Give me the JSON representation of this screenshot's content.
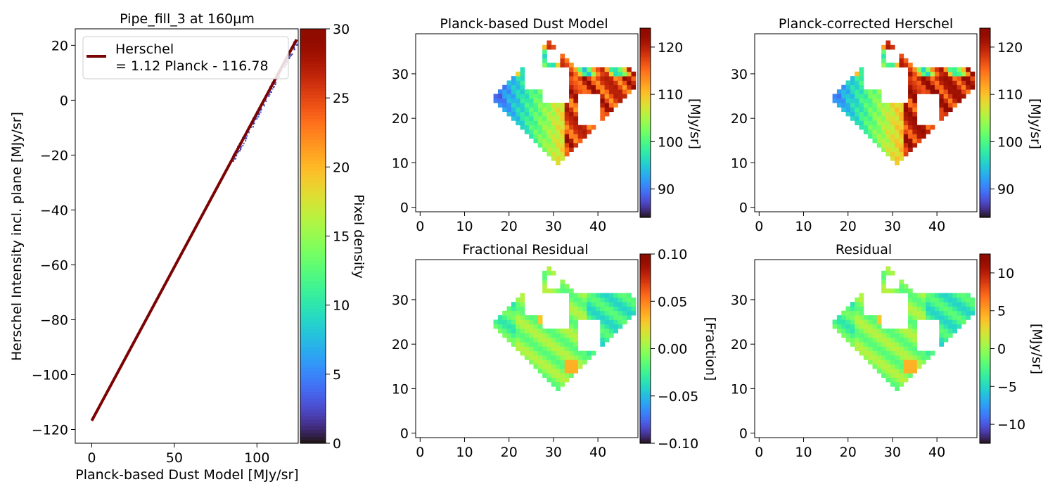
{
  "chart_data": [
    {
      "type": "scatter",
      "title": "Pipe_fill_3 at 160µm",
      "xlabel": "Planck-based Dust Model [MJy/sr]",
      "ylabel": "Herschel Intensity incl. plane [MJy/sr]",
      "xlim": [
        -10,
        125
      ],
      "ylim": [
        -125,
        26
      ],
      "xticks": [
        0,
        50,
        100
      ],
      "yticks": [
        -120,
        -100,
        -80,
        -60,
        -40,
        -20,
        0,
        20
      ],
      "legend": {
        "location": "top-left",
        "entries": [
          "Herschel\n= 1.12 Planck - 116.78"
        ]
      },
      "fit_line": {
        "slope": 1.12,
        "intercept": -116.78,
        "x_range": [
          0,
          124
        ],
        "color": "#7a0403"
      },
      "colorbar": {
        "label": "Pixel density",
        "range": [
          0,
          30
        ],
        "ticks": [
          0,
          5,
          10,
          15,
          20,
          25,
          30
        ],
        "colormap": "turbo"
      },
      "x_range_of_points": [
        85,
        124
      ]
    },
    {
      "type": "heatmap",
      "title": "Planck-based Dust Model",
      "xlim": [
        -1,
        49
      ],
      "ylim": [
        -1,
        39
      ],
      "xticks": [
        0,
        10,
        20,
        30,
        40
      ],
      "yticks": [
        0,
        10,
        20,
        30
      ],
      "colorbar": {
        "label": "[MJy/sr]",
        "range": [
          84,
          124
        ],
        "ticks": [
          90,
          100,
          110,
          120
        ],
        "colormap": "turbo"
      }
    },
    {
      "type": "heatmap",
      "title": "Planck-corrected Herschel",
      "xlim": [
        -1,
        49
      ],
      "ylim": [
        -1,
        39
      ],
      "xticks": [
        0,
        10,
        20,
        30,
        40
      ],
      "yticks": [
        0,
        10,
        20,
        30
      ],
      "colorbar": {
        "label": "[MJy/sr]",
        "range": [
          84,
          124
        ],
        "ticks": [
          90,
          100,
          110,
          120
        ],
        "colormap": "turbo"
      }
    },
    {
      "type": "heatmap",
      "title": "Fractional Residual",
      "xlim": [
        -1,
        49
      ],
      "ylim": [
        -1,
        39
      ],
      "xticks": [
        0,
        10,
        20,
        30,
        40
      ],
      "yticks": [
        0,
        10,
        20,
        30
      ],
      "colorbar": {
        "label": "[Fraction]",
        "range": [
          -0.1,
          0.1
        ],
        "ticks": [
          "−0.10",
          "−0.05",
          "0.00",
          "0.05",
          "0.10"
        ],
        "colormap": "turbo"
      }
    },
    {
      "type": "heatmap",
      "title": "Residual",
      "xlim": [
        -1,
        49
      ],
      "ylim": [
        -1,
        39
      ],
      "xticks": [
        0,
        10,
        20,
        30,
        40
      ],
      "yticks": [
        0,
        10,
        20,
        30
      ],
      "colorbar": {
        "label": "[MJy/sr]",
        "range": [
          -12.5,
          12.5
        ],
        "ticks": [
          "−10",
          "−5",
          "0",
          "5",
          "10"
        ],
        "colormap": "turbo"
      }
    }
  ]
}
